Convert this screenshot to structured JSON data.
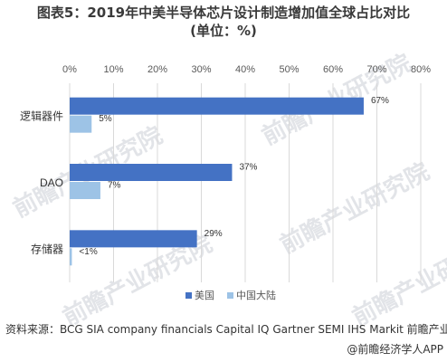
{
  "title_line1": "图表5：2019年中美半导体芯片设计制造增加值全球占比对比",
  "title_line2": "(单位：%)",
  "source": "资料来源：BCG SIA company financials Capital IQ Gartner SEMI IHS Markit 前瞻产业研究院",
  "credit": "@前瞻经济学人APP",
  "watermark": "前瞻产业研究院",
  "colors": {
    "us": "#4472c4",
    "cn": "#9dc3e6"
  },
  "chart_data": {
    "type": "bar",
    "orientation": "horizontal",
    "categories": [
      "逻辑器件",
      "DAO",
      "存储器"
    ],
    "series": [
      {
        "name": "美国",
        "values": [
          67,
          37,
          29
        ],
        "labels": [
          "67%",
          "37%",
          "29%"
        ]
      },
      {
        "name": "中国大陆",
        "values": [
          5,
          7,
          0.5
        ],
        "labels": [
          "5%",
          "7%",
          "<1%"
        ]
      }
    ],
    "xlim": [
      0,
      80
    ],
    "xticks": [
      "0%",
      "10%",
      "20%",
      "30%",
      "40%",
      "50%",
      "60%",
      "70%",
      "80%"
    ],
    "grid": true,
    "legend": "bottom"
  }
}
